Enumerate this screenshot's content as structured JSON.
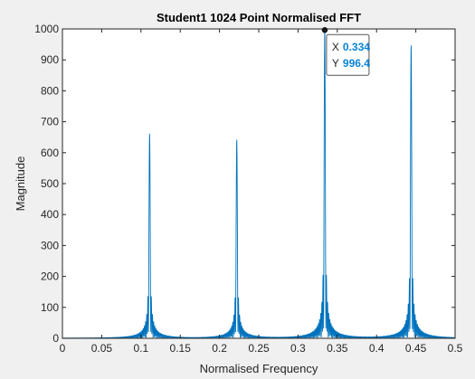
{
  "chart_data": {
    "type": "line",
    "title": "Student1 1024 Point Normalised FFT",
    "xlabel": "Normalised Frequency",
    "ylabel": "Magnitude",
    "xlim": [
      0,
      0.5
    ],
    "ylim": [
      0,
      1000
    ],
    "xticks": [
      0,
      0.05,
      0.1,
      0.15,
      0.2,
      0.25,
      0.3,
      0.35,
      0.4,
      0.45,
      0.5
    ],
    "xtick_labels": [
      "0",
      "0.05",
      "0.1",
      "0.15",
      "0.2",
      "0.25",
      "0.3",
      "0.35",
      "0.4",
      "0.45",
      "0.5"
    ],
    "yticks": [
      0,
      100,
      200,
      300,
      400,
      500,
      600,
      700,
      800,
      900,
      1000
    ],
    "ytick_labels": [
      "0",
      "100",
      "200",
      "300",
      "400",
      "500",
      "600",
      "700",
      "800",
      "900",
      "1000"
    ],
    "grid": false,
    "line_color": "#0072bd",
    "peaks": [
      {
        "x": 0.111,
        "y": 660
      },
      {
        "x": 0.222,
        "y": 640
      },
      {
        "x": 0.334,
        "y": 996.4
      },
      {
        "x": 0.444,
        "y": 945
      }
    ],
    "datatip": {
      "x": 0.334,
      "y": 996.4,
      "x_label": "X",
      "y_label": "Y",
      "x_text": "0.334",
      "y_text": "996.4",
      "value_color": "#0a84d6"
    }
  }
}
